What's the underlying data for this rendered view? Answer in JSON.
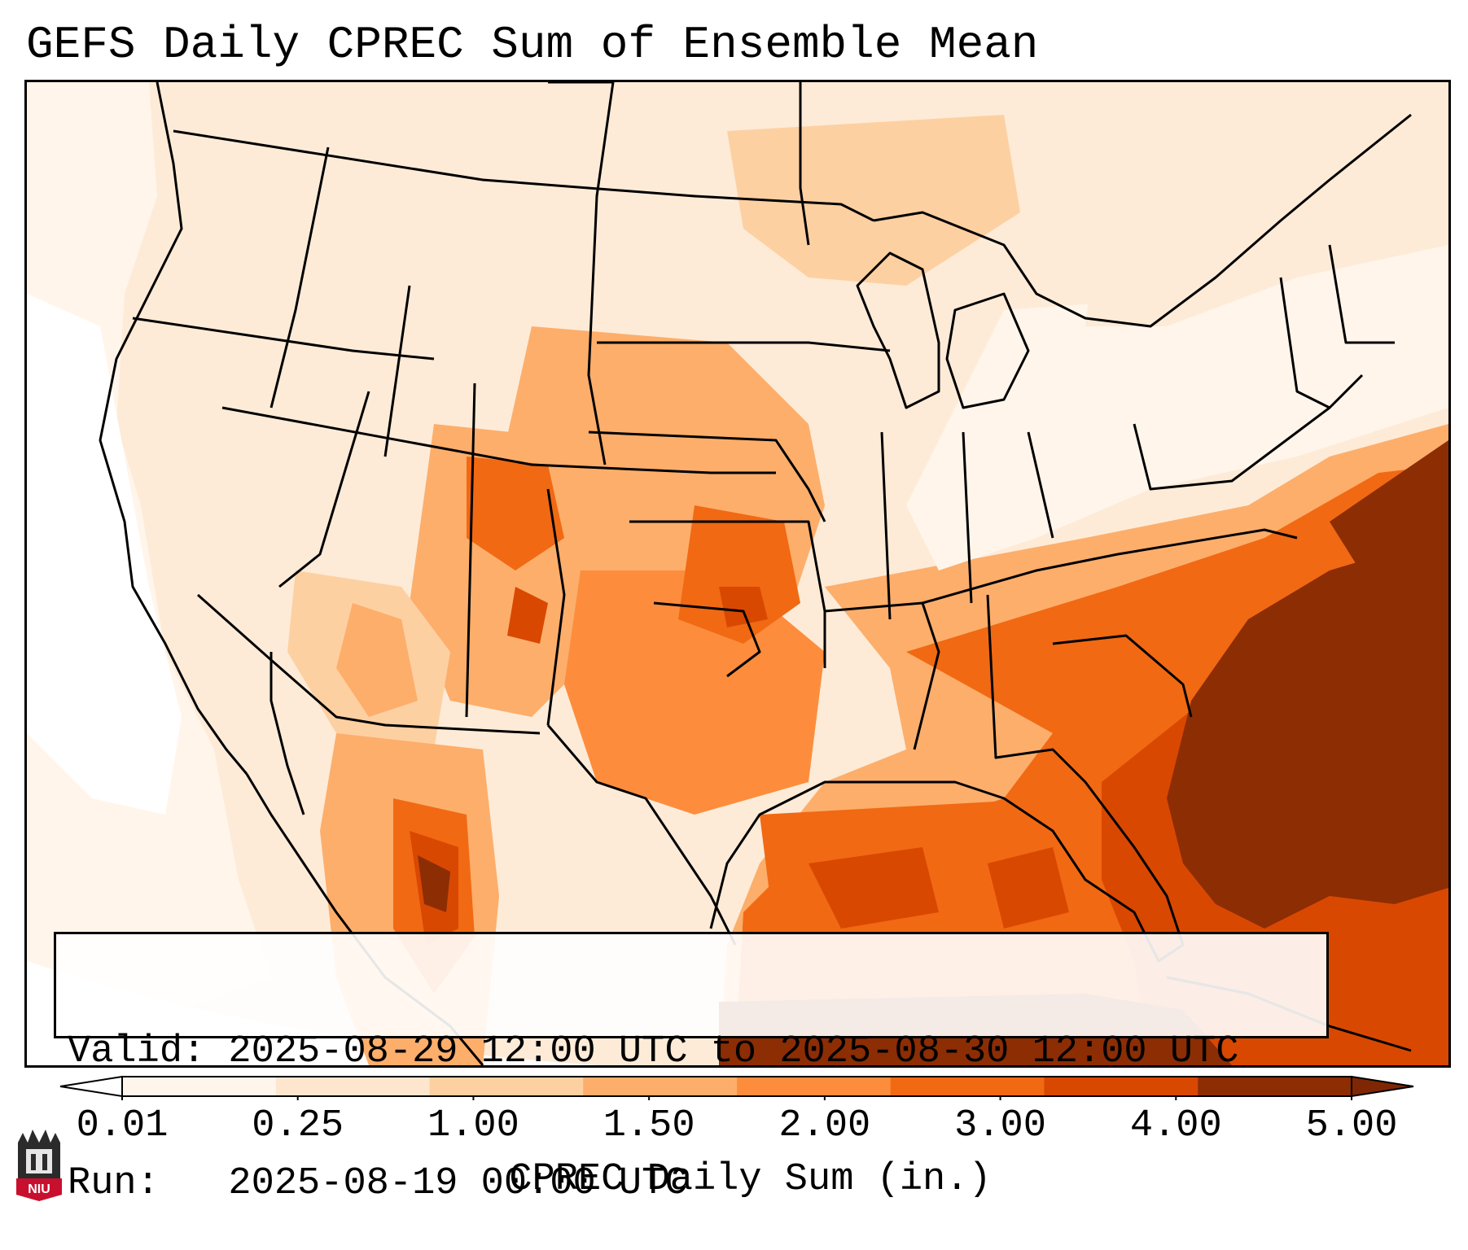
{
  "title": "GEFS Daily CPREC Sum of Ensemble Mean",
  "info": {
    "valid": "Valid: 2025-08-29 12:00 UTC to 2025-08-30 12:00 UTC",
    "run": "Run:   2025-08-19 00:00 UTC"
  },
  "colorbar": {
    "label": "CPREC Daily Sum (in.)",
    "ticks": [
      "0.01",
      "0.25",
      "1.00",
      "1.50",
      "2.00",
      "3.00",
      "4.00",
      "5.00"
    ],
    "colors": [
      "#fff5eb",
      "#fee6ce",
      "#fdd0a2",
      "#fdae6b",
      "#fd8d3c",
      "#f16913",
      "#d94801",
      "#8c2d04"
    ],
    "under_color": "#ffffff",
    "over_color": "#7f2704"
  },
  "logo": {
    "text": "NIU",
    "name": "niu-logo"
  },
  "map": {
    "projection": "Lambert conformal, CONUS",
    "field": "CPREC ensemble-mean daily sum",
    "heavy_regions": [
      "Atlantic east of Carolinas/Florida",
      "Gulf of Mexico",
      "Oklahoma/Kansas",
      "Western Mexico"
    ]
  }
}
